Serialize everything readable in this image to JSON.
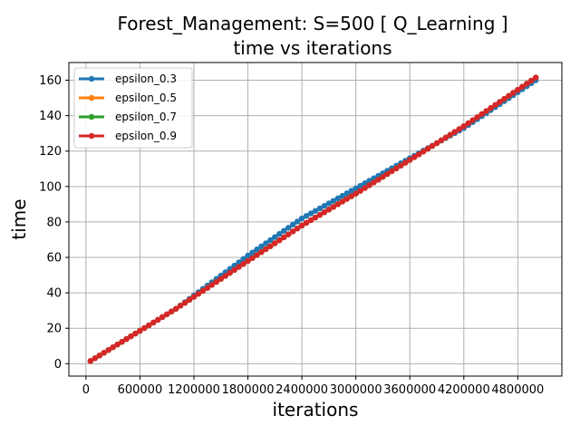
{
  "chart_data": {
    "type": "line",
    "title": "Forest_Management: S=500 [ Q_Learning ]",
    "subtitle": "time vs iterations",
    "xlabel": "iterations",
    "ylabel": "time",
    "xlim": [
      -190000,
      5290000
    ],
    "ylim": [
      -7,
      170
    ],
    "xticks": [
      0,
      600000,
      1200000,
      1800000,
      2400000,
      3000000,
      3600000,
      4200000,
      4800000
    ],
    "xtick_labels": [
      "0",
      "600000",
      "1200000",
      "1800000",
      "2400000",
      "3000000",
      "3600000",
      "4200000",
      "4800000"
    ],
    "yticks": [
      0,
      20,
      40,
      60,
      80,
      100,
      120,
      140,
      160
    ],
    "ytick_labels": [
      "0",
      "20",
      "40",
      "60",
      "80",
      "100",
      "120",
      "140",
      "160"
    ],
    "grid": true,
    "legend_position": "top-left",
    "x_range": {
      "start": 50000,
      "end": 5000000,
      "points": 100
    },
    "series": [
      {
        "name": "epsilon_0.3",
        "color": "#1f77b4",
        "x_start": 50000,
        "x_end": 5000000,
        "points": 100,
        "keypoints": [
          [
            50000,
            1.5
          ],
          [
            1000000,
            31
          ],
          [
            1800000,
            61
          ],
          [
            2400000,
            82
          ],
          [
            3000000,
            99
          ],
          [
            3600000,
            116
          ],
          [
            4200000,
            133
          ],
          [
            5000000,
            160
          ]
        ]
      },
      {
        "name": "epsilon_0.5",
        "color": "#ff7f0e",
        "x_start": 50000,
        "x_end": 5000000,
        "points": 100,
        "keypoints": [
          [
            50000,
            1.5
          ],
          [
            1000000,
            31
          ],
          [
            1800000,
            58
          ],
          [
            2400000,
            78
          ],
          [
            3000000,
            96
          ],
          [
            3600000,
            115
          ],
          [
            4200000,
            134
          ],
          [
            5000000,
            161.5
          ]
        ]
      },
      {
        "name": "epsilon_0.7",
        "color": "#2ca02c",
        "x_start": 50000,
        "x_end": 5000000,
        "points": 100,
        "keypoints": [
          [
            50000,
            1.5
          ],
          [
            1000000,
            31
          ],
          [
            1800000,
            58
          ],
          [
            2400000,
            78
          ],
          [
            3000000,
            96
          ],
          [
            3600000,
            115
          ],
          [
            4200000,
            134
          ],
          [
            5000000,
            161.5
          ]
        ]
      },
      {
        "name": "epsilon_0.9",
        "color": "#d62728",
        "x_start": 50000,
        "x_end": 5000000,
        "points": 100,
        "keypoints": [
          [
            50000,
            1.5
          ],
          [
            1000000,
            31
          ],
          [
            1800000,
            58
          ],
          [
            2400000,
            78
          ],
          [
            3000000,
            96
          ],
          [
            3600000,
            115
          ],
          [
            4200000,
            134
          ],
          [
            5000000,
            161.5
          ]
        ]
      }
    ]
  }
}
